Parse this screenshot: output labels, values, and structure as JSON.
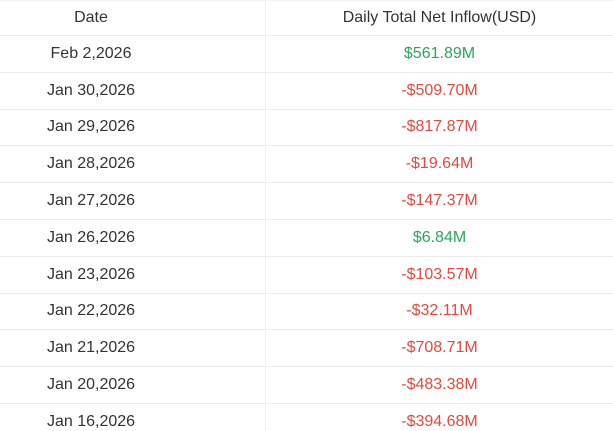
{
  "colors": {
    "positive": "#2ea45f",
    "negative": "#e3493f",
    "text": "#333333",
    "border": "#ececec"
  },
  "table": {
    "columns": [
      {
        "id": "date",
        "label": "Date"
      },
      {
        "id": "inflow",
        "label": "Daily Total Net Inflow(USD)"
      }
    ],
    "rows": [
      {
        "date": "Feb 2,2026",
        "value": "$561.89M",
        "trend": "positive"
      },
      {
        "date": "Jan 30,2026",
        "value": "-$509.70M",
        "trend": "negative"
      },
      {
        "date": "Jan 29,2026",
        "value": "-$817.87M",
        "trend": "negative"
      },
      {
        "date": "Jan 28,2026",
        "value": "-$19.64M",
        "trend": "negative"
      },
      {
        "date": "Jan 27,2026",
        "value": "-$147.37M",
        "trend": "negative"
      },
      {
        "date": "Jan 26,2026",
        "value": "$6.84M",
        "trend": "positive"
      },
      {
        "date": "Jan 23,2026",
        "value": "-$103.57M",
        "trend": "negative"
      },
      {
        "date": "Jan 22,2026",
        "value": "-$32.11M",
        "trend": "negative"
      },
      {
        "date": "Jan 21,2026",
        "value": "-$708.71M",
        "trend": "negative"
      },
      {
        "date": "Jan 20,2026",
        "value": "-$483.38M",
        "trend": "negative"
      },
      {
        "date": "Jan 16,2026",
        "value": "-$394.68M",
        "trend": "negative"
      }
    ]
  },
  "chart_data": {
    "type": "table",
    "title": "Daily Total Net Inflow(USD)",
    "columns": [
      "Date",
      "Daily Total Net Inflow(USD)"
    ],
    "categories": [
      "Feb 2,2026",
      "Jan 30,2026",
      "Jan 29,2026",
      "Jan 28,2026",
      "Jan 27,2026",
      "Jan 26,2026",
      "Jan 23,2026",
      "Jan 22,2026",
      "Jan 21,2026",
      "Jan 20,2026",
      "Jan 16,2026"
    ],
    "values_million_usd": [
      561.89,
      -509.7,
      -817.87,
      -19.64,
      -147.37,
      6.84,
      -103.57,
      -32.11,
      -708.71,
      -483.38,
      -394.68
    ],
    "value_labels": [
      "$561.89M",
      "-$509.70M",
      "-$817.87M",
      "-$19.64M",
      "-$147.37M",
      "$6.84M",
      "-$103.57M",
      "-$32.11M",
      "-$708.71M",
      "-$483.38M",
      "-$394.68M"
    ]
  }
}
